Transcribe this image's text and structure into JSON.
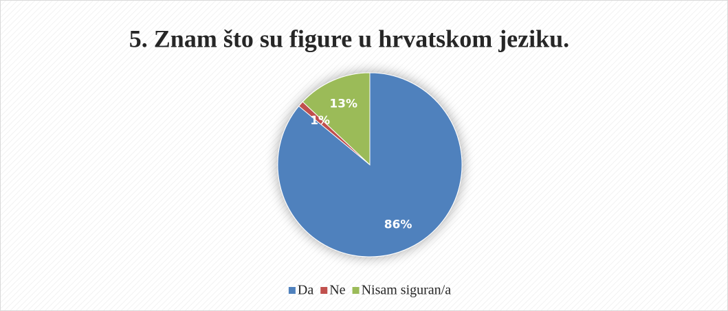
{
  "chart_data": {
    "type": "pie",
    "title": "5. Znam što su figure u hrvatskom jeziku.",
    "categories": [
      "Da",
      "Ne",
      "Nisam siguran/a"
    ],
    "values": [
      86,
      1,
      13
    ],
    "value_labels": [
      "86%",
      "1%",
      "13%"
    ],
    "colors": [
      "#4f81bd",
      "#c0504d",
      "#9bbb59"
    ],
    "legend": "bottom"
  }
}
